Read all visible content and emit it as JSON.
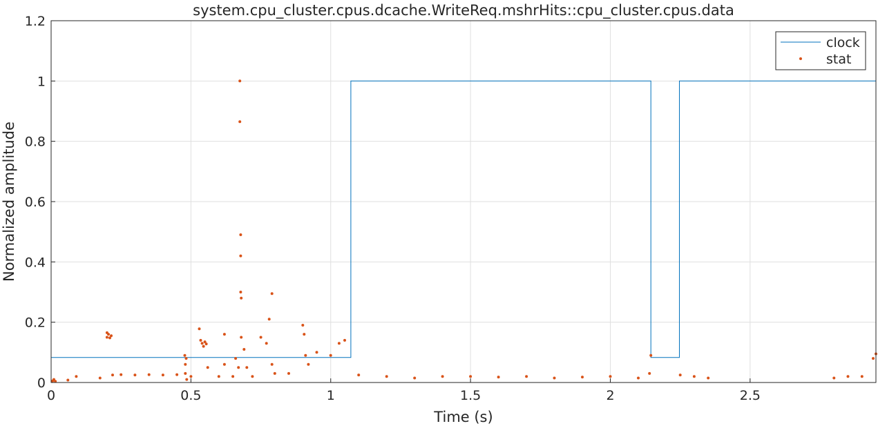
{
  "chart_data": {
    "type": "line",
    "title": "system.cpu_cluster.cpus.dcache.WriteReq.mshrHits::cpu_cluster.cpus.data",
    "xlabel": "Time (s)",
    "ylabel": "Normalized amplitude",
    "xlim": [
      0,
      2.95
    ],
    "ylim": [
      0,
      1.2
    ],
    "xticks": [
      0,
      0.5,
      1,
      1.5,
      2,
      2.5
    ],
    "xtick_labels": [
      "0",
      "0.5",
      "1",
      "1.5",
      "2",
      "2.5"
    ],
    "yticks": [
      0,
      0.2,
      0.4,
      0.6,
      0.8,
      1,
      1.2
    ],
    "ytick_labels": [
      "0",
      "0.2",
      "0.4",
      "0.6",
      "0.8",
      "1",
      "1.2"
    ],
    "grid": true,
    "legend_position": "top-right",
    "series": [
      {
        "name": "clock",
        "style": "step-line",
        "color": "#0072BD",
        "x": [
          0,
          1.072,
          1.072,
          2.145,
          2.145,
          2.247,
          2.247,
          2.95,
          2.95
        ],
        "y": [
          0.083,
          0.083,
          1,
          1,
          0.083,
          0.083,
          1,
          1,
          0
        ]
      },
      {
        "name": "stat",
        "style": "markers",
        "color": "#D95319",
        "x": [
          0.005,
          0.01,
          0.015,
          0.06,
          0.09,
          0.175,
          0.2,
          0.2,
          0.205,
          0.21,
          0.215,
          0.22,
          0.25,
          0.3,
          0.35,
          0.4,
          0.45,
          0.478,
          0.48,
          0.48,
          0.483,
          0.485,
          0.5,
          0.53,
          0.535,
          0.54,
          0.545,
          0.55,
          0.555,
          0.56,
          0.6,
          0.62,
          0.62,
          0.65,
          0.66,
          0.67,
          0.675,
          0.675,
          0.678,
          0.678,
          0.678,
          0.68,
          0.68,
          0.69,
          0.7,
          0.72,
          0.75,
          0.77,
          0.78,
          0.79,
          0.79,
          0.8,
          0.85,
          0.9,
          0.905,
          0.91,
          0.92,
          0.95,
          1.0,
          1.03,
          1.05,
          1.1,
          1.2,
          1.3,
          1.4,
          1.5,
          1.6,
          1.7,
          1.8,
          1.9,
          2.0,
          2.1,
          2.14,
          2.145,
          2.25,
          2.3,
          2.35,
          2.8,
          2.85,
          2.9,
          2.94,
          2.95
        ],
        "y": [
          0.005,
          0.01,
          0.004,
          0.008,
          0.02,
          0.015,
          0.165,
          0.15,
          0.16,
          0.148,
          0.155,
          0.025,
          0.026,
          0.025,
          0.026,
          0.025,
          0.026,
          0.09,
          0.06,
          0.03,
          0.08,
          0.01,
          0.02,
          0.178,
          0.14,
          0.13,
          0.12,
          0.135,
          0.128,
          0.05,
          0.02,
          0.16,
          0.06,
          0.02,
          0.08,
          0.05,
          1.0,
          0.865,
          0.49,
          0.42,
          0.3,
          0.28,
          0.15,
          0.11,
          0.05,
          0.02,
          0.15,
          0.13,
          0.21,
          0.295,
          0.06,
          0.03,
          0.03,
          0.19,
          0.16,
          0.09,
          0.06,
          0.1,
          0.09,
          0.13,
          0.14,
          0.025,
          0.02,
          0.015,
          0.02,
          0.02,
          0.018,
          0.02,
          0.015,
          0.018,
          0.02,
          0.015,
          0.03,
          0.09,
          0.025,
          0.02,
          0.015,
          0.015,
          0.02,
          0.02,
          0.08,
          0.095
        ]
      }
    ]
  }
}
